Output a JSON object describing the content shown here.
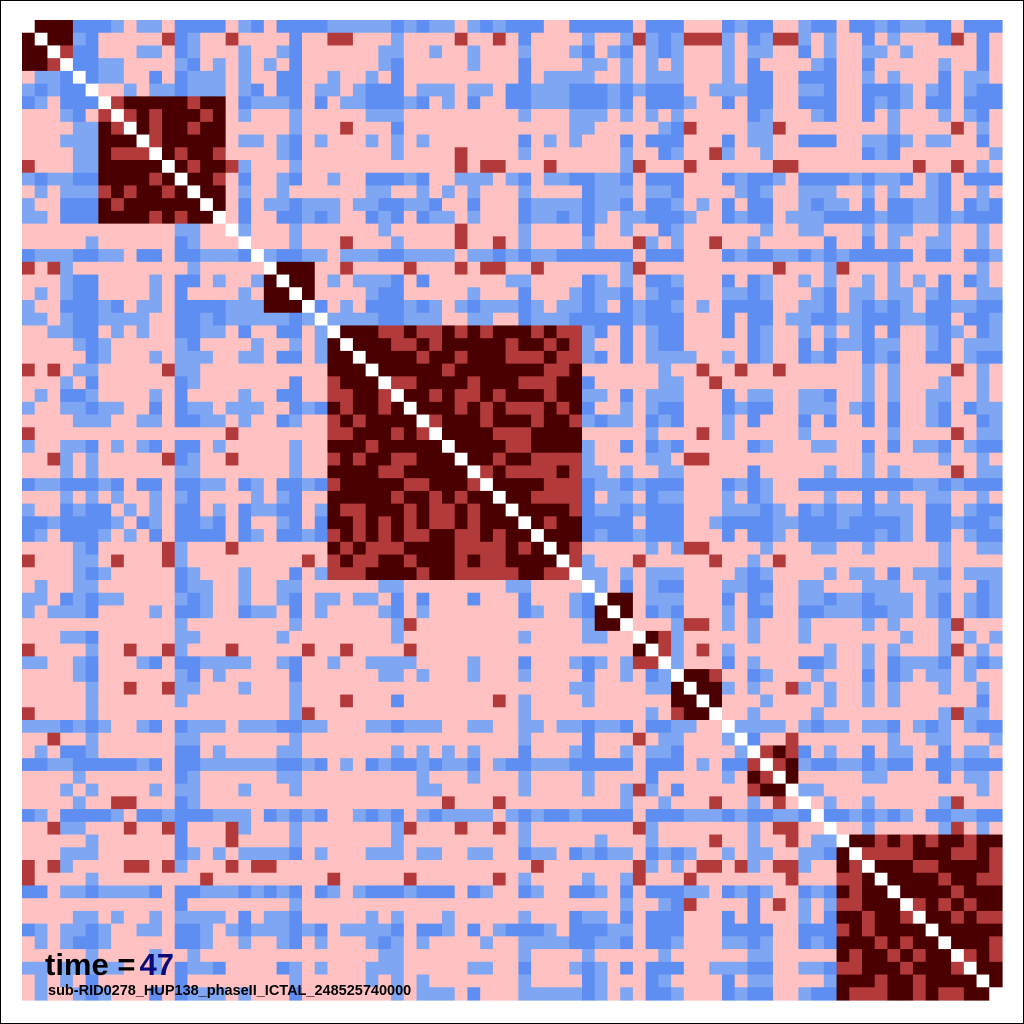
{
  "chart_data": {
    "type": "heatmap",
    "title": "",
    "xlabel": "",
    "ylabel": "",
    "matrix_size": 77,
    "symmetric": true,
    "diagonal_value": 1.0,
    "value_range": [
      -1,
      1
    ],
    "colors": {
      "strong_positive": "#4a0000",
      "mid_positive": "#b33a3a",
      "weak_positive": "#ffc1c1",
      "weak_negative": "#7fa6f2",
      "negative": "#5e8ef2",
      "diagonal": "#ffffff",
      "frame": "#000000"
    },
    "blocks": [
      {
        "from": 0,
        "to": 4,
        "strength": 0.9
      },
      {
        "from": 6,
        "to": 16,
        "strength": 0.85
      },
      {
        "from": 19,
        "to": 23,
        "strength": 0.95
      },
      {
        "from": 24,
        "to": 44,
        "strength": 0.85
      },
      {
        "from": 45,
        "to": 48,
        "strength": 0.8
      },
      {
        "from": 48,
        "to": 51,
        "strength": 0.7
      },
      {
        "from": 51,
        "to": 55,
        "strength": 0.9
      },
      {
        "from": 57,
        "to": 61,
        "strength": 0.75
      },
      {
        "from": 64,
        "to": 77,
        "strength": 0.85
      }
    ]
  },
  "annotation": {
    "time_label": "time =",
    "time_value": "47",
    "file_label": "sub-RID0278_HUP138_phaseII_ICTAL_248525740000"
  }
}
